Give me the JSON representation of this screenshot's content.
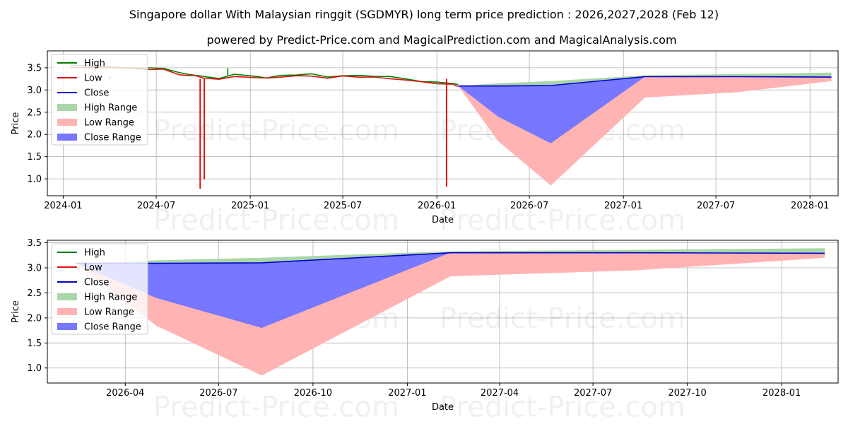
{
  "title": "Singapore dollar With Malaysian ringgit (SGDMYR) long term price prediction : 2026,2027,2028 (Feb 12)",
  "subtitle": "powered by Predict-Price.com and MagicalPrediction.com and MagicalAnalysis.com",
  "watermark": "Predict-Price.com",
  "colors": {
    "high": "#008000",
    "low": "#dd1111",
    "close": "#0000cc",
    "high_range": "#a9d6a9",
    "low_range": "#ffb3b3",
    "close_range": "#7777ff"
  },
  "chart_data": [
    {
      "type": "line",
      "xlabel": "Date",
      "ylabel": "Price",
      "xlim": [
        "2023-12-01",
        "2028-02-25"
      ],
      "ylim": [
        0.62,
        3.88
      ],
      "grid": true,
      "legend_position": "top-left",
      "xticks": [
        "2024-01",
        "2024-07",
        "2025-01",
        "2025-07",
        "2026-01",
        "2026-07",
        "2027-01",
        "2027-07",
        "2028-01"
      ],
      "yticks": [
        "1.0",
        "1.5",
        "2.0",
        "2.5",
        "3.0",
        "3.5"
      ],
      "legend": [
        "High",
        "Low",
        "Close",
        "High Range",
        "Low Range",
        "Close Range"
      ],
      "history": {
        "x": [
          "2024-01-15",
          "2024-03-01",
          "2024-05-01",
          "2024-06-20",
          "2024-07-15",
          "2024-08-15",
          "2024-09-01",
          "2024-09-15",
          "2024-10-01",
          "2024-11-01",
          "2024-12-01",
          "2025-01-15",
          "2025-02-01",
          "2025-03-01",
          "2025-04-01",
          "2025-05-01",
          "2025-06-01",
          "2025-07-01",
          "2025-08-01",
          "2025-09-01",
          "2025-10-01",
          "2025-11-01",
          "2025-12-01",
          "2026-01-01",
          "2026-02-01",
          "2026-02-12"
        ],
        "close": [
          3.53,
          3.52,
          3.5,
          3.48,
          3.48,
          3.37,
          3.34,
          3.33,
          3.29,
          3.25,
          3.33,
          3.29,
          3.27,
          3.31,
          3.33,
          3.34,
          3.28,
          3.32,
          3.31,
          3.3,
          3.28,
          3.24,
          3.19,
          3.16,
          3.14,
          3.1
        ],
        "spikes_low": [
          {
            "x": "2024-04-01",
            "value": 3.3
          },
          {
            "x": "2024-09-25",
            "value": 0.78
          },
          {
            "x": "2024-10-03",
            "value": 0.99
          },
          {
            "x": "2026-01-20",
            "value": 0.82
          }
        ],
        "spikes_high": [
          {
            "x": "2024-11-18",
            "value": 3.49
          }
        ]
      },
      "forecast": {
        "x": [
          "2026-02-12",
          "2026-05-01",
          "2026-08-12",
          "2027-02-12",
          "2027-08-12",
          "2028-02-12"
        ],
        "close": [
          3.09,
          3.09,
          3.1,
          3.3,
          3.3,
          3.29
        ],
        "low_range": {
          "lower": [
            3.09,
            1.85,
            0.85,
            2.83,
            2.95,
            3.2
          ],
          "upper": [
            3.09,
            3.09,
            3.1,
            3.3,
            3.3,
            3.29
          ]
        },
        "close_range": {
          "lower": [
            3.09,
            2.4,
            1.8,
            3.3,
            3.3,
            3.29
          ],
          "upper": [
            3.09,
            3.09,
            3.1,
            3.3,
            3.3,
            3.29
          ]
        },
        "high_range": {
          "lower": [
            3.09,
            3.09,
            3.1,
            3.3,
            3.3,
            3.29
          ],
          "upper": [
            3.09,
            3.15,
            3.2,
            3.33,
            3.36,
            3.39
          ]
        }
      }
    },
    {
      "type": "line",
      "xlabel": "Date",
      "ylabel": "Price",
      "xlim": [
        "2026-01-15",
        "2028-02-25"
      ],
      "ylim": [
        0.7,
        3.55
      ],
      "grid": true,
      "legend_position": "top-left",
      "xticks": [
        "2026-04",
        "2026-07",
        "2026-10",
        "2027-01",
        "2027-04",
        "2027-07",
        "2027-10",
        "2028-01"
      ],
      "yticks": [
        "1.0",
        "1.5",
        "2.0",
        "2.5",
        "3.0",
        "3.5"
      ],
      "legend": [
        "High",
        "Low",
        "Close",
        "High Range",
        "Low Range",
        "Close Range"
      ],
      "forecast": {
        "x": [
          "2026-02-12",
          "2026-05-01",
          "2026-08-12",
          "2027-02-12",
          "2027-08-12",
          "2028-02-12"
        ],
        "close": [
          3.09,
          3.09,
          3.1,
          3.3,
          3.3,
          3.29
        ],
        "low_range": {
          "lower": [
            3.09,
            1.85,
            0.85,
            2.83,
            2.95,
            3.2
          ],
          "upper": [
            3.09,
            3.09,
            3.1,
            3.3,
            3.3,
            3.29
          ]
        },
        "close_range": {
          "lower": [
            3.09,
            2.4,
            1.8,
            3.3,
            3.3,
            3.29
          ],
          "upper": [
            3.09,
            3.09,
            3.1,
            3.3,
            3.3,
            3.29
          ]
        },
        "high_range": {
          "lower": [
            3.09,
            3.09,
            3.1,
            3.3,
            3.3,
            3.29
          ],
          "upper": [
            3.09,
            3.15,
            3.2,
            3.33,
            3.36,
            3.39
          ]
        }
      }
    }
  ]
}
